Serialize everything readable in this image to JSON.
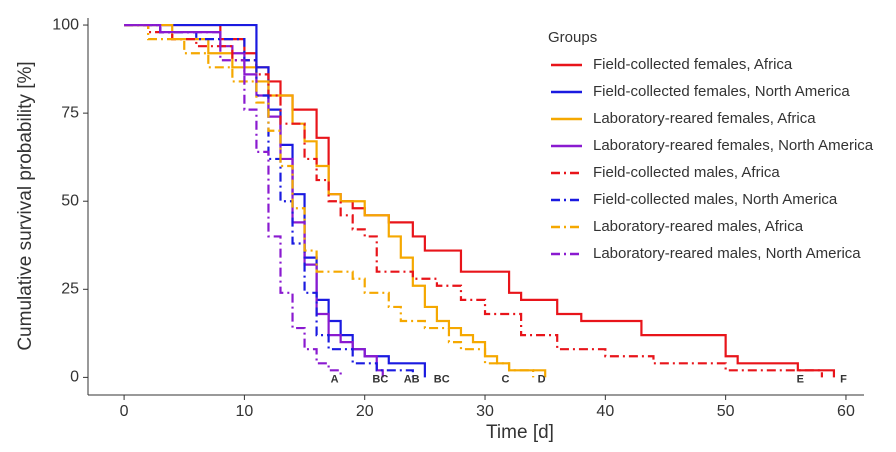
{
  "chart_data": {
    "type": "step",
    "x_label": "Time [d]",
    "y_label": "Cumulative survival probability [%]",
    "legend_title": "Groups",
    "legend": "right",
    "xlim": [
      -3,
      61.5
    ],
    "ylim": [
      -5,
      102
    ],
    "xticks": [
      0,
      10,
      20,
      30,
      40,
      50,
      60
    ],
    "yticks": [
      0,
      25,
      50,
      75,
      100
    ],
    "series": [
      {
        "name": "Field-collected females, Africa",
        "color": "#e8141a",
        "dash": "solid",
        "x": [
          0,
          8,
          10,
          11,
          12,
          13,
          14,
          16,
          17,
          18,
          19,
          20,
          22,
          24,
          25,
          28,
          32,
          33,
          36,
          38,
          43,
          50,
          51,
          56,
          59
        ],
        "values": [
          100,
          96,
          92,
          88,
          84,
          80,
          76,
          68,
          52,
          50,
          48,
          46,
          44,
          40,
          36,
          30,
          24,
          22,
          18,
          16,
          12,
          6,
          4,
          2,
          0
        ]
      },
      {
        "name": "Field-collected females, North America",
        "color": "#1a1ae0",
        "dash": "solid",
        "x": [
          0,
          11,
          12,
          13,
          14,
          15,
          16,
          17,
          18,
          19,
          20,
          22,
          25
        ],
        "values": [
          100,
          88,
          76,
          66,
          52,
          34,
          22,
          16,
          12,
          8,
          6,
          4,
          0
        ]
      },
      {
        "name": "Laboratory-reared females, Africa",
        "color": "#f5a800",
        "dash": "solid",
        "x": [
          0,
          4,
          7,
          9,
          11,
          12,
          14,
          15,
          16,
          17,
          18,
          20,
          22,
          23,
          24,
          25,
          26,
          27,
          28,
          29,
          30,
          31,
          32,
          35
        ],
        "values": [
          100,
          96,
          92,
          88,
          84,
          80,
          72,
          67,
          60,
          52,
          50,
          46,
          40,
          34,
          26,
          20,
          16,
          14,
          12,
          10,
          6,
          4,
          2,
          0
        ]
      },
      {
        "name": "Laboratory-reared females, North America",
        "color": "#8a1ad0",
        "dash": "solid",
        "x": [
          0,
          3,
          8,
          9,
          10,
          11,
          12,
          13,
          14,
          15,
          16,
          17,
          18,
          19,
          20,
          21,
          21.5
        ],
        "values": [
          100,
          98,
          94,
          92,
          86,
          80,
          74,
          62,
          44,
          32,
          18,
          12,
          10,
          8,
          6,
          2,
          0
        ]
      },
      {
        "name": "Field-collected males, Africa",
        "color": "#e8141a",
        "dash": "dashdot",
        "x": [
          0,
          2,
          4,
          6,
          9,
          11,
          12,
          13,
          15,
          16,
          17,
          18,
          19,
          20,
          21,
          24,
          26,
          28,
          30,
          33,
          36,
          40,
          44,
          50,
          58
        ],
        "values": [
          100,
          98,
          96,
          94,
          90,
          86,
          80,
          72,
          62,
          56,
          50,
          46,
          42,
          40,
          30,
          28,
          26,
          22,
          18,
          12,
          8,
          6,
          4,
          2,
          0
        ]
      },
      {
        "name": "Field-collected males, North America",
        "color": "#1a1ae0",
        "dash": "dashdot",
        "x": [
          0,
          3,
          6,
          10,
          11,
          12,
          13,
          14,
          15,
          16,
          17,
          19,
          21,
          24
        ],
        "values": [
          100,
          98,
          96,
          90,
          80,
          62,
          50,
          38,
          24,
          12,
          8,
          4,
          2,
          0
        ]
      },
      {
        "name": "Laboratory-reared males, Africa",
        "color": "#f5a800",
        "dash": "dashdot",
        "x": [
          0,
          2,
          5,
          7,
          9,
          11,
          12,
          13,
          14,
          15,
          16,
          19,
          20,
          22,
          23,
          25,
          27,
          28,
          30,
          32,
          34
        ],
        "values": [
          100,
          96,
          92,
          88,
          84,
          78,
          70,
          60,
          48,
          36,
          30,
          28,
          24,
          20,
          16,
          14,
          10,
          8,
          4,
          2,
          0
        ]
      },
      {
        "name": "Laboratory-reared males, North America",
        "color": "#8a1ad0",
        "dash": "dashdot",
        "x": [
          0,
          3,
          8,
          10,
          11,
          12,
          13,
          14,
          15,
          16,
          17,
          18
        ],
        "values": [
          100,
          98,
          90,
          76,
          64,
          40,
          24,
          14,
          8,
          4,
          2,
          0
        ]
      }
    ],
    "annotations": [
      {
        "text": "A",
        "x": 17.5,
        "y": -0.6
      },
      {
        "text": "BC",
        "x": 21.3,
        "y": -0.6
      },
      {
        "text": "AB",
        "x": 23.9,
        "y": -0.6
      },
      {
        "text": "BC",
        "x": 26.4,
        "y": -0.6
      },
      {
        "text": "C",
        "x": 31.7,
        "y": -0.6
      },
      {
        "text": "D",
        "x": 34.7,
        "y": -0.6
      },
      {
        "text": "E",
        "x": 56.2,
        "y": -0.6
      },
      {
        "text": "F",
        "x": 59.8,
        "y": -0.6
      }
    ]
  }
}
